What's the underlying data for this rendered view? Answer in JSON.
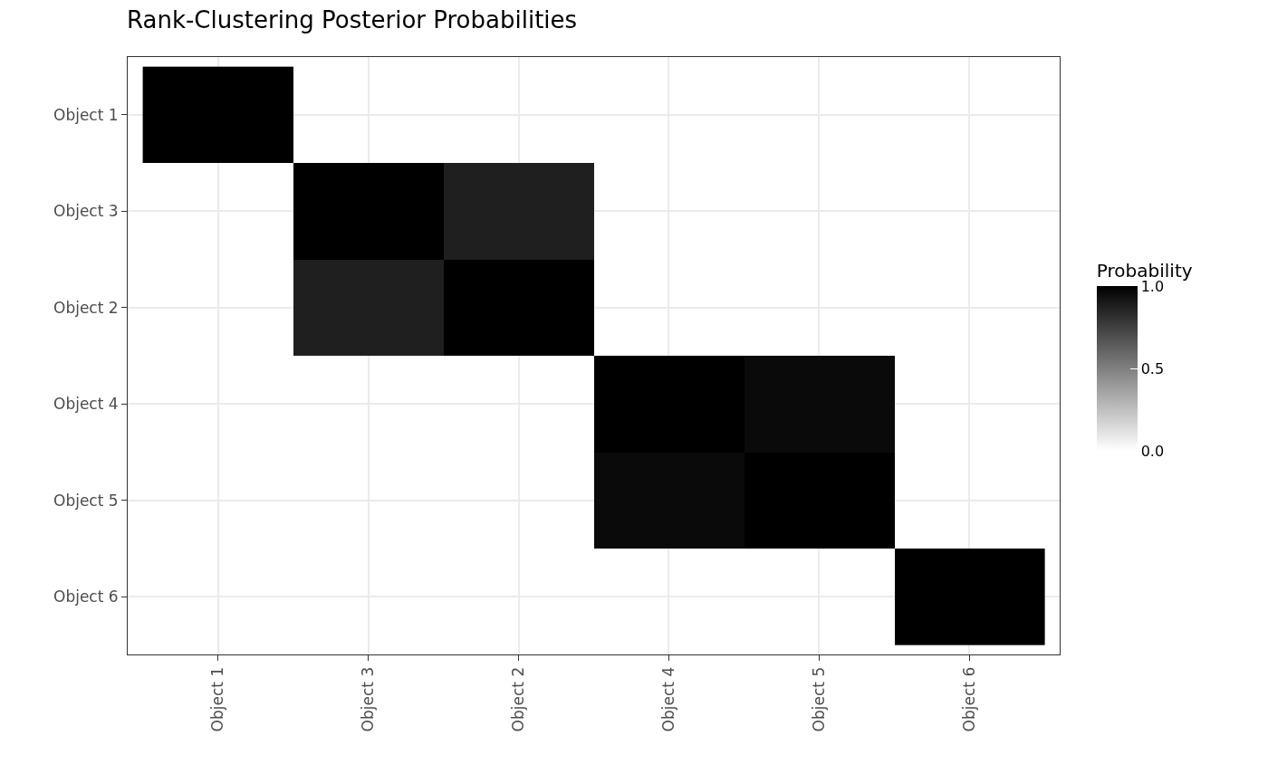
{
  "chart_data": {
    "type": "heatmap",
    "title": "Rank-Clustering Posterior Probabilities",
    "categories": [
      "Object 1",
      "Object 3",
      "Object 2",
      "Object 4",
      "Object 5",
      "Object 6"
    ],
    "y_categories": [
      "Object 1",
      "Object 3",
      "Object 2",
      "Object 4",
      "Object 5",
      "Object 6"
    ],
    "cells": [
      [
        1,
        null,
        null,
        null,
        null,
        null
      ],
      [
        null,
        1,
        0.88,
        null,
        null,
        null
      ],
      [
        null,
        0.88,
        1,
        null,
        null,
        null
      ],
      [
        null,
        null,
        null,
        1,
        0.96,
        null
      ],
      [
        null,
        null,
        null,
        0.96,
        1,
        null
      ],
      [
        null,
        null,
        null,
        null,
        null,
        1
      ]
    ],
    "clabel": "Probability",
    "clim": [
      0,
      1
    ],
    "cticks": [
      {
        "value": 0,
        "label": "0.0"
      },
      {
        "value": 0.5,
        "label": "0.5"
      },
      {
        "value": 1,
        "label": "1.0"
      }
    ],
    "grid": true
  }
}
